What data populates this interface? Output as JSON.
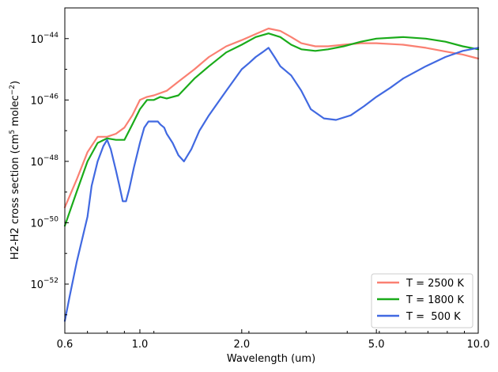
{
  "chart_data": {
    "type": "line",
    "xlabel": "Wavelength (um)",
    "ylabel": "H2-H2 cross section (cm⁵ molec⁻²)",
    "xscale": "log",
    "yscale": "log",
    "xlim": [
      0.6,
      10.0
    ],
    "ylim_log10": [
      -53.6,
      -43.0
    ],
    "x_ticks": [
      {
        "value": 0.6,
        "label": "0.6"
      },
      {
        "value": 1.0,
        "label": "1.0"
      },
      {
        "value": 2.0,
        "label": "2.0"
      },
      {
        "value": 5.0,
        "label": "5.0"
      },
      {
        "value": 10.0,
        "label": "10.0"
      }
    ],
    "y_ticks": [
      {
        "exp": -52,
        "label": "−52"
      },
      {
        "exp": -50,
        "label": "−50"
      },
      {
        "exp": -48,
        "label": "−48"
      },
      {
        "exp": -46,
        "label": "−46"
      },
      {
        "exp": -44,
        "label": "−44"
      }
    ],
    "legend_position": "lower-right",
    "grid": false,
    "series": [
      {
        "name": "T = 2500 K",
        "color": "#fa8072",
        "x": [
          0.6,
          0.65,
          0.7,
          0.75,
          0.8,
          0.85,
          0.9,
          0.95,
          1.0,
          1.05,
          1.1,
          1.2,
          1.3,
          1.45,
          1.6,
          1.8,
          2.0,
          2.2,
          2.4,
          2.6,
          2.8,
          3.0,
          3.3,
          3.6,
          4.0,
          4.5,
          5.0,
          6.0,
          7.0,
          8.0,
          9.0,
          10.0
        ],
        "log10y": [
          -49.5,
          -48.6,
          -47.7,
          -47.2,
          -47.2,
          -47.1,
          -46.9,
          -46.5,
          -46.0,
          -45.9,
          -45.85,
          -45.7,
          -45.4,
          -45.0,
          -44.6,
          -44.25,
          -44.05,
          -43.85,
          -43.67,
          -43.75,
          -43.95,
          -44.15,
          -44.25,
          -44.25,
          -44.2,
          -44.15,
          -44.15,
          -44.2,
          -44.3,
          -44.42,
          -44.52,
          -44.65
        ]
      },
      {
        "name": "T = 1800 K",
        "color": "#1aab1a",
        "x": [
          0.6,
          0.65,
          0.7,
          0.75,
          0.8,
          0.85,
          0.9,
          0.95,
          1.0,
          1.05,
          1.1,
          1.15,
          1.2,
          1.3,
          1.45,
          1.6,
          1.8,
          2.0,
          2.2,
          2.4,
          2.6,
          2.8,
          3.0,
          3.3,
          3.6,
          4.0,
          4.5,
          5.0,
          6.0,
          7.0,
          8.0,
          9.0,
          10.0
        ],
        "log10y": [
          -50.1,
          -49.0,
          -48.0,
          -47.4,
          -47.25,
          -47.3,
          -47.3,
          -46.8,
          -46.3,
          -46.0,
          -46.0,
          -45.9,
          -45.95,
          -45.85,
          -45.3,
          -44.9,
          -44.45,
          -44.2,
          -43.95,
          -43.83,
          -43.95,
          -44.2,
          -44.35,
          -44.4,
          -44.35,
          -44.25,
          -44.1,
          -44.0,
          -43.95,
          -44.0,
          -44.1,
          -44.25,
          -44.35
        ]
      },
      {
        "name": "T =  500 K",
        "color": "#4169e1",
        "x": [
          0.6,
          0.62,
          0.65,
          0.7,
          0.72,
          0.75,
          0.78,
          0.8,
          0.82,
          0.85,
          0.87,
          0.89,
          0.91,
          0.93,
          0.96,
          1.0,
          1.03,
          1.06,
          1.1,
          1.13,
          1.15,
          1.18,
          1.2,
          1.25,
          1.3,
          1.35,
          1.42,
          1.5,
          1.6,
          1.8,
          2.0,
          2.1,
          2.2,
          2.3,
          2.4,
          2.5,
          2.6,
          2.8,
          3.0,
          3.2,
          3.5,
          3.8,
          4.2,
          4.6,
          5.0,
          5.5,
          6.0,
          7.0,
          8.0,
          9.0,
          10.0
        ],
        "log10y": [
          -53.2,
          -52.4,
          -51.3,
          -49.8,
          -48.8,
          -48.0,
          -47.5,
          -47.3,
          -47.6,
          -48.3,
          -48.8,
          -49.3,
          -49.3,
          -48.9,
          -48.2,
          -47.4,
          -46.9,
          -46.7,
          -46.7,
          -46.7,
          -46.8,
          -46.9,
          -47.1,
          -47.4,
          -47.8,
          -48.0,
          -47.6,
          -47.0,
          -46.5,
          -45.7,
          -45.0,
          -44.8,
          -44.6,
          -44.45,
          -44.3,
          -44.6,
          -44.9,
          -45.2,
          -45.7,
          -46.3,
          -46.6,
          -46.65,
          -46.5,
          -46.2,
          -45.9,
          -45.6,
          -45.3,
          -44.9,
          -44.6,
          -44.4,
          -44.3
        ]
      }
    ]
  }
}
